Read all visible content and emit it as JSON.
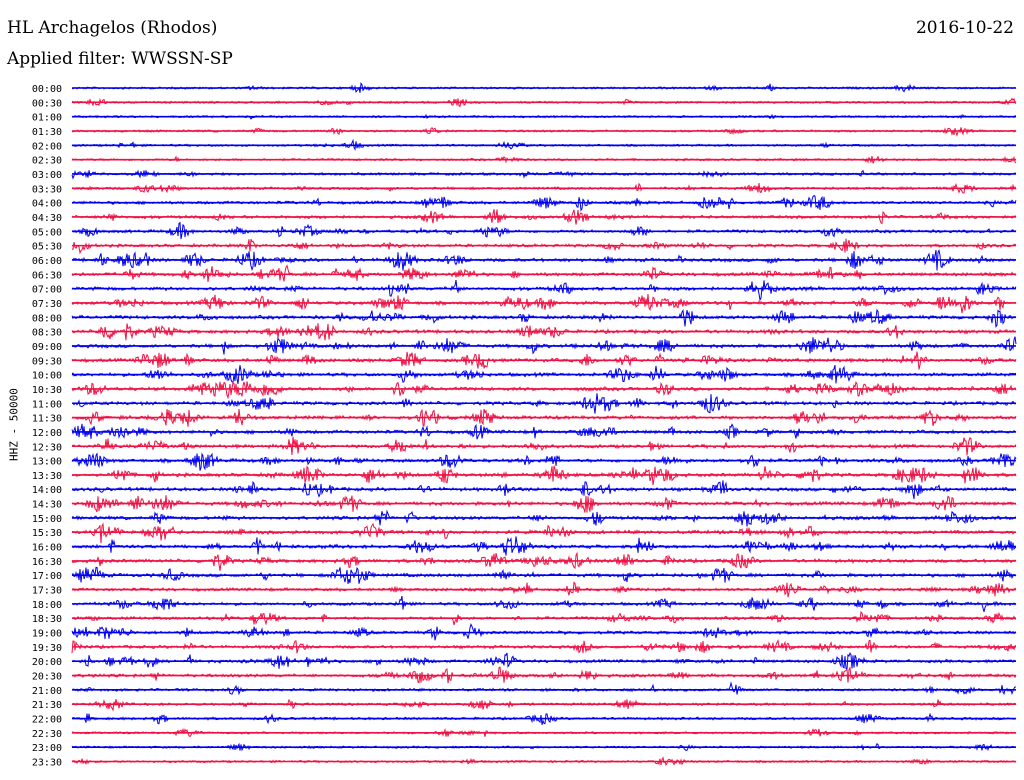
{
  "station": "HL Archagelos (Rhodos)",
  "date": "2016-10-22",
  "filter": "Applied filter: WWSSN-SP",
  "channel": "HHZ - 50000",
  "chart_data": {
    "type": "line",
    "description_kind": "helicorder",
    "rows": [
      "00:00",
      "00:30",
      "01:00",
      "01:30",
      "02:00",
      "02:30",
      "03:00",
      "03:30",
      "04:00",
      "04:30",
      "05:00",
      "05:30",
      "06:00",
      "06:30",
      "07:00",
      "07:30",
      "08:00",
      "08:30",
      "09:00",
      "09:30",
      "10:00",
      "10:30",
      "11:00",
      "11:30",
      "12:00",
      "12:30",
      "13:00",
      "13:30",
      "14:00",
      "14:30",
      "15:00",
      "15:30",
      "16:00",
      "16:30",
      "17:00",
      "17:30",
      "18:00",
      "18:30",
      "19:00",
      "19:30",
      "20:00",
      "20:30",
      "21:00",
      "21:30",
      "22:00",
      "22:30",
      "23:00",
      "23:30"
    ],
    "colors": [
      "#0000ee",
      "#ee1144"
    ],
    "amplitude_level": [
      1,
      1,
      1,
      1,
      1,
      1,
      2,
      2,
      3,
      3,
      3,
      3,
      4,
      4,
      4,
      4,
      4,
      4,
      4,
      4,
      4,
      4,
      4,
      4,
      4,
      4,
      4,
      4,
      4,
      4,
      4,
      4,
      4,
      4,
      4,
      3,
      3,
      3,
      3,
      3,
      3,
      3,
      2,
      2,
      2,
      1,
      1,
      1
    ]
  }
}
